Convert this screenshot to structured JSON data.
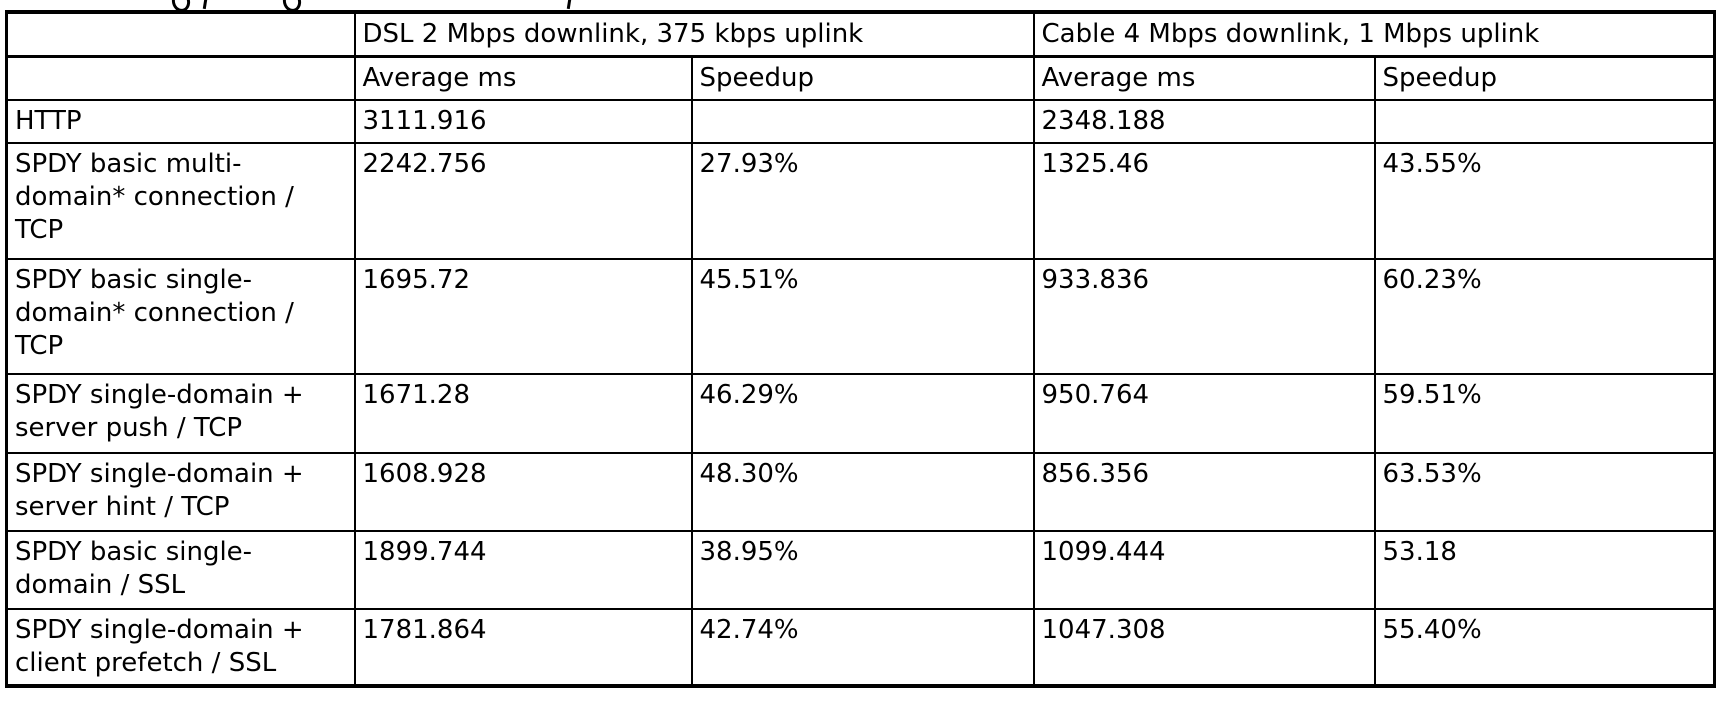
{
  "page": {
    "background": "#ffffff",
    "text_color": "#000000",
    "border_color": "#000000"
  },
  "table": {
    "column_groups": [
      {
        "label": "",
        "span": 1
      },
      {
        "label": "DSL 2 Mbps downlink, 375 kbps uplink",
        "span": 2
      },
      {
        "label": "Cable 4 Mbps downlink, 1 Mbps uplink",
        "span": 2
      }
    ],
    "sub_headers": [
      "",
      "Average ms",
      "Speedup",
      "Average ms",
      "Speedup"
    ],
    "cell_names": [
      "dsl-average-ms-cell",
      "dsl-speedup-cell",
      "cable-average-ms-cell",
      "cable-speedup-cell"
    ],
    "rows": [
      {
        "label": "HTTP",
        "cells": [
          "3111.916",
          "",
          "2348.188",
          ""
        ]
      },
      {
        "label": "SPDY basic multi-domain* connection / TCP",
        "cells": [
          "2242.756",
          "27.93%",
          "1325.46",
          "43.55%"
        ]
      },
      {
        "label": "SPDY basic single-domain* connection / TCP",
        "cells": [
          "1695.72",
          "45.51%",
          "933.836",
          "60.23%"
        ]
      },
      {
        "label": "SPDY single-domain + server push / TCP",
        "cells": [
          "1671.28",
          "46.29%",
          "950.764",
          "59.51%"
        ]
      },
      {
        "label": "SPDY single-domain + server hint / TCP",
        "cells": [
          "1608.928",
          "48.30%",
          "856.356",
          "63.53%"
        ]
      },
      {
        "label": "SPDY basic single-domain / SSL",
        "cells": [
          "1899.744",
          "38.95%",
          "1099.444",
          "53.18"
        ]
      },
      {
        "label": "SPDY single-domain + client prefetch / SSL",
        "cells": [
          "1781.864",
          "42.74%",
          "1047.308",
          "55.40%"
        ]
      }
    ]
  }
}
